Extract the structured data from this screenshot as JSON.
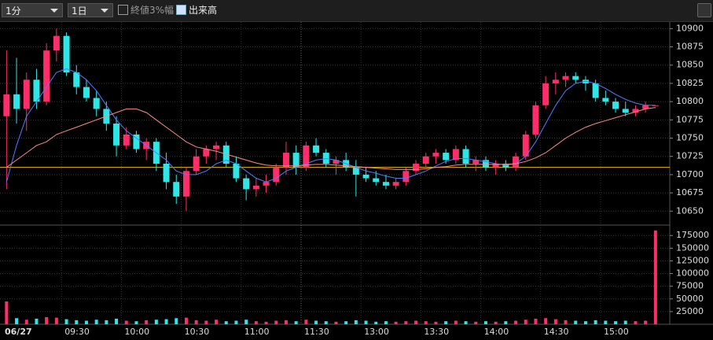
{
  "toolbar": {
    "interval": "1分",
    "range": "1日",
    "options": [
      {
        "label": "終値3%幅",
        "checked": false
      },
      {
        "label": "出来高",
        "checked": true
      }
    ]
  },
  "chart_data": [
    {
      "type": "candlestick",
      "categories": [
        "06/27",
        null,
        null,
        null,
        null,
        null,
        "09:30",
        null,
        null,
        null,
        null,
        null,
        "10:00",
        null,
        null,
        null,
        null,
        null,
        "10:30",
        null,
        null,
        null,
        null,
        null,
        "11:00",
        null,
        null,
        null,
        null,
        null,
        "11:30",
        null,
        null,
        null,
        null,
        null,
        "13:00",
        null,
        null,
        null,
        null,
        null,
        "13:30",
        null,
        null,
        null,
        null,
        null,
        "14:00",
        null,
        null,
        null,
        null,
        null,
        "14:30",
        null,
        null,
        null,
        null,
        null,
        "15:00",
        null,
        null,
        null,
        null,
        null
      ],
      "open": [
        10780,
        10810,
        10790,
        10830,
        10800,
        10870,
        10890,
        10840,
        10820,
        10805,
        10790,
        10770,
        10740,
        10755,
        10735,
        10745,
        10715,
        10690,
        10670,
        10705,
        10725,
        10735,
        10740,
        10715,
        10695,
        10680,
        10685,
        10690,
        10710,
        10730,
        10710,
        10740,
        10730,
        10715,
        10720,
        10710,
        10700,
        10695,
        10690,
        10685,
        10690,
        10705,
        10715,
        10725,
        10730,
        10720,
        10735,
        10715,
        10720,
        10710,
        10715,
        10710,
        10725,
        10755,
        10795,
        10825,
        10830,
        10835,
        10830,
        10825,
        10805,
        10800,
        10790,
        10785,
        10790,
        10795
      ],
      "high": [
        10870,
        10860,
        10840,
        10845,
        10880,
        10900,
        10895,
        10850,
        10830,
        10815,
        10800,
        10780,
        10765,
        10760,
        10750,
        10750,
        10730,
        10700,
        10710,
        10735,
        10740,
        10745,
        10745,
        10725,
        10700,
        10695,
        10700,
        10715,
        10745,
        10740,
        10745,
        10750,
        10735,
        10725,
        10730,
        10720,
        10710,
        10705,
        10700,
        10695,
        10710,
        10720,
        10730,
        10735,
        10735,
        10740,
        10740,
        10725,
        10725,
        10720,
        10720,
        10730,
        10760,
        10800,
        10835,
        10840,
        10840,
        10840,
        10835,
        10830,
        10815,
        10805,
        10800,
        10795,
        10800,
        10795
      ],
      "low": [
        10680,
        10770,
        10760,
        10790,
        10795,
        10855,
        10835,
        10810,
        10800,
        10780,
        10760,
        10725,
        10735,
        10730,
        10720,
        10705,
        10680,
        10660,
        10650,
        10700,
        10715,
        10720,
        10710,
        10690,
        10665,
        10670,
        10675,
        10685,
        10700,
        10700,
        10705,
        10725,
        10710,
        10700,
        10705,
        10670,
        10690,
        10685,
        10680,
        10680,
        10685,
        10700,
        10710,
        10715,
        10715,
        10715,
        10710,
        10705,
        10705,
        10700,
        10705,
        10705,
        10720,
        10750,
        10790,
        10810,
        10820,
        10825,
        10815,
        10800,
        10795,
        10785,
        10780,
        10780,
        10785,
        10795
      ],
      "close": [
        10810,
        10790,
        10830,
        10800,
        10870,
        10890,
        10840,
        10820,
        10805,
        10790,
        10770,
        10740,
        10755,
        10735,
        10745,
        10715,
        10690,
        10670,
        10705,
        10725,
        10735,
        10740,
        10715,
        10695,
        10680,
        10685,
        10690,
        10710,
        10730,
        10710,
        10740,
        10730,
        10715,
        10720,
        10710,
        10700,
        10695,
        10690,
        10685,
        10690,
        10705,
        10715,
        10725,
        10730,
        10720,
        10735,
        10715,
        10720,
        10710,
        10715,
        10710,
        10725,
        10755,
        10795,
        10825,
        10830,
        10835,
        10830,
        10825,
        10805,
        10800,
        10790,
        10785,
        10790,
        10795,
        10795
      ],
      "up_color": "#ff2e6b",
      "down_color": "#2ee6e6",
      "series": [
        {
          "color": "#4f7dff",
          "values": [
            10690,
            10740,
            10780,
            10800,
            10820,
            10840,
            10845,
            10840,
            10830,
            10815,
            10795,
            10775,
            10760,
            10750,
            10740,
            10730,
            10720,
            10705,
            10700,
            10700,
            10705,
            10715,
            10720,
            10715,
            10705,
            10695,
            10690,
            10695,
            10705,
            10710,
            10715,
            10720,
            10722,
            10720,
            10715,
            10710,
            10705,
            10702,
            10698,
            10695,
            10695,
            10700,
            10705,
            10712,
            10718,
            10722,
            10722,
            10720,
            10718,
            10715,
            10713,
            10715,
            10725,
            10745,
            10770,
            10795,
            10815,
            10825,
            10828,
            10825,
            10818,
            10810,
            10803,
            10798,
            10795,
            10795
          ]
        },
        {
          "color": "#ff8a8a",
          "values": [
            10710,
            10720,
            10730,
            10740,
            10745,
            10755,
            10760,
            10765,
            10770,
            10775,
            10780,
            10785,
            10790,
            10790,
            10785,
            10775,
            10765,
            10755,
            10745,
            10738,
            10735,
            10732,
            10728,
            10724,
            10720,
            10716,
            10713,
            10712,
            10712,
            10712,
            10713,
            10714,
            10714,
            10713,
            10712,
            10711,
            10710,
            10709,
            10708,
            10707,
            10707,
            10707,
            10708,
            10710,
            10711,
            10713,
            10714,
            10714,
            10714,
            10714,
            10714,
            10715,
            10718,
            10723,
            10730,
            10740,
            10750,
            10758,
            10765,
            10770,
            10774,
            10778,
            10782,
            10786,
            10790,
            10792
          ]
        }
      ],
      "reference_line": 10710,
      "reference_color": "#e6b800",
      "ylim": [
        10632,
        10909
      ],
      "yticks": [
        10650,
        10675,
        10700,
        10725,
        10750,
        10775,
        10800,
        10825,
        10850,
        10875,
        10900
      ],
      "grid": true
    },
    {
      "type": "bar",
      "values": [
        45000,
        12000,
        9000,
        11000,
        14000,
        13000,
        10000,
        8000,
        7000,
        9000,
        8000,
        11000,
        7000,
        6000,
        8000,
        9000,
        10000,
        12000,
        13000,
        8000,
        7000,
        9000,
        6000,
        7000,
        9000,
        6000,
        5000,
        7000,
        8000,
        6000,
        9000,
        7000,
        6000,
        5000,
        6000,
        8000,
        7000,
        5000,
        6000,
        5000,
        6000,
        7000,
        6000,
        5000,
        6000,
        7000,
        6000,
        5000,
        6000,
        5000,
        6000,
        7000,
        9000,
        11000,
        12000,
        10000,
        8000,
        7000,
        6000,
        8000,
        7000,
        6000,
        7000,
        6000,
        7000,
        185000
      ],
      "ylim": [
        0,
        194000
      ],
      "yticks": [
        25000,
        50000,
        75000,
        100000,
        125000,
        150000,
        175000
      ],
      "grid": true
    }
  ]
}
